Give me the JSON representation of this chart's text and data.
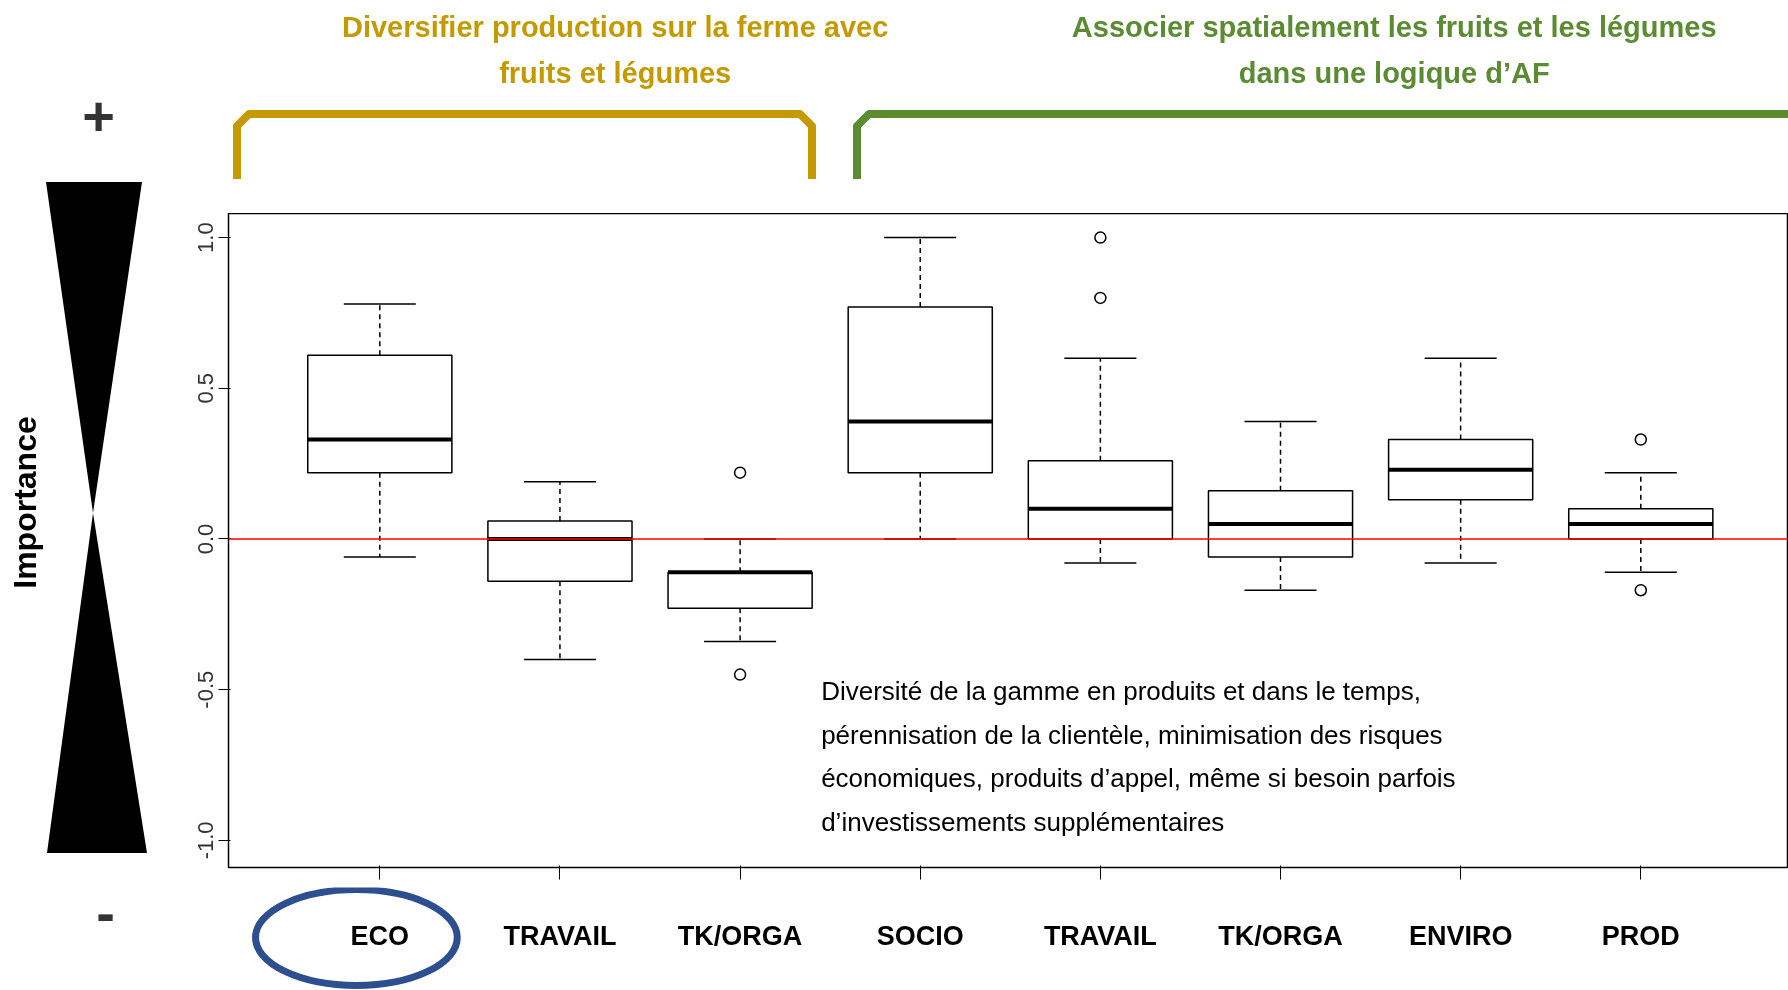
{
  "chart_data": {
    "type": "box",
    "categories": [
      "ECO",
      "TRAVAIL",
      "TK/ORGA",
      "SOCIO",
      "TRAVAIL",
      "TK/ORGA",
      "ENVIRO",
      "PROD"
    ],
    "ylabel": "Importance",
    "ylim": [
      -1.09,
      1.08
    ],
    "yticks": [
      {
        "value": -1,
        "label": "-1.0"
      },
      {
        "value": -0.5,
        "label": "-0.5"
      },
      {
        "value": 0,
        "label": "0.0"
      },
      {
        "value": 0.5,
        "label": "0.5"
      },
      {
        "value": 1,
        "label": "1.0"
      }
    ],
    "boxes": [
      {
        "low": -0.06,
        "q1": 0.22,
        "median": 0.33,
        "q3": 0.61,
        "high": 0.78
      },
      {
        "low": -0.4,
        "q1": -0.14,
        "median": 0.0,
        "q3": 0.06,
        "high": 0.19
      },
      {
        "low": -0.34,
        "q1": -0.23,
        "median": -0.11,
        "q3": -0.11,
        "high": 0.0,
        "outliers": [
          0.22,
          -0.45
        ]
      },
      {
        "low": 0.0,
        "q1": 0.22,
        "median": 0.39,
        "q3": 0.77,
        "high": 1.0
      },
      {
        "low": -0.08,
        "q1": 0.0,
        "median": 0.1,
        "q3": 0.26,
        "high": 0.6,
        "outliers": [
          1.0,
          0.8
        ]
      },
      {
        "low": -0.17,
        "q1": -0.06,
        "median": 0.05,
        "q3": 0.16,
        "high": 0.39
      },
      {
        "low": -0.08,
        "q1": 0.13,
        "median": 0.23,
        "q3": 0.33,
        "high": 0.6
      },
      {
        "low": -0.11,
        "q1": 0.0,
        "median": 0.05,
        "q3": 0.1,
        "high": 0.22,
        "outliers": [
          0.33,
          -0.17
        ]
      }
    ],
    "ref_lines": [
      {
        "axis": "y",
        "value": 0,
        "color": "#ff0000"
      }
    ],
    "annotations": [
      "Diversifier production sur la ferme avec\nfruits et légumes",
      "Associer spatialement les fruits et les légumes\ndans une logique d’AF",
      "+",
      "-",
      "Diversité de la gamme en produits et dans le temps,\npérennisation de la clientèle, minimisation des risques\néconomiques, produits d’appel, même si besoin parfois\nd’investissements supplémentaires"
    ],
    "grid": false
  }
}
